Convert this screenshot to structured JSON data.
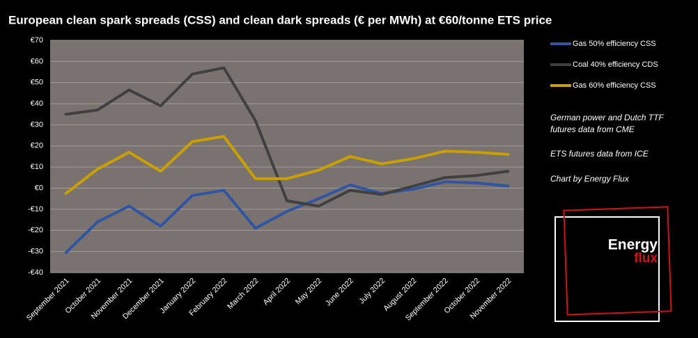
{
  "chart_data": {
    "type": "line",
    "title": "European clean spark spreads (CSS) and clean dark spreads (€ per MWh) at €60/tonne ETS price",
    "categories": [
      "September 2021",
      "October 2021",
      "November 2021",
      "December 2021",
      "January 2022",
      "February 2022",
      "March 2022",
      "April 2022",
      "May 2022",
      "June 2022",
      "July 2022",
      "August 2022",
      "September 2022",
      "October 2022",
      "November 2022"
    ],
    "series": [
      {
        "name": "Gas 50% efficiency CSS",
        "color": "#2f55a4",
        "values": [
          -30.5,
          -16,
          -8.5,
          -18,
          -3.5,
          -1,
          -19,
          -11,
          -5,
          1.5,
          -2.5,
          -0.5,
          3,
          2.5,
          1
        ]
      },
      {
        "name": "Coal 40% efficiency CDS",
        "color": "#404040",
        "values": [
          35,
          37,
          46.5,
          39,
          54,
          57,
          32,
          -6,
          -8.5,
          -1,
          -3,
          1,
          5,
          6,
          8
        ]
      },
      {
        "name": "Gas 60% efficiency CSS",
        "color": "#c9a000",
        "values": [
          -2.5,
          9,
          17,
          8,
          22,
          24.5,
          4.5,
          4.5,
          8.5,
          15,
          11.5,
          14,
          17.5,
          17,
          16
        ]
      }
    ],
    "ylim": [
      -40,
      70
    ],
    "yticks": [
      {
        "value": -40,
        "label": "-€40"
      },
      {
        "value": -30,
        "label": "-€30"
      },
      {
        "value": -20,
        "label": "-€20"
      },
      {
        "value": -10,
        "label": "-€10"
      },
      {
        "value": 0,
        "label": "€0"
      },
      {
        "value": 10,
        "label": "€10"
      },
      {
        "value": 20,
        "label": "€20"
      },
      {
        "value": 30,
        "label": "€30"
      },
      {
        "value": 40,
        "label": "€40"
      },
      {
        "value": 50,
        "label": "€50"
      },
      {
        "value": 60,
        "label": "€60"
      },
      {
        "value": 70,
        "label": "€70"
      }
    ],
    "grid": true,
    "annotations": [
      "German power and Dutch TTF",
      "futures data from CME",
      "ETS futures data from ICE",
      "Chart by Energy Flux"
    ]
  },
  "logo": {
    "line1": "Energy",
    "line2": "flux"
  }
}
